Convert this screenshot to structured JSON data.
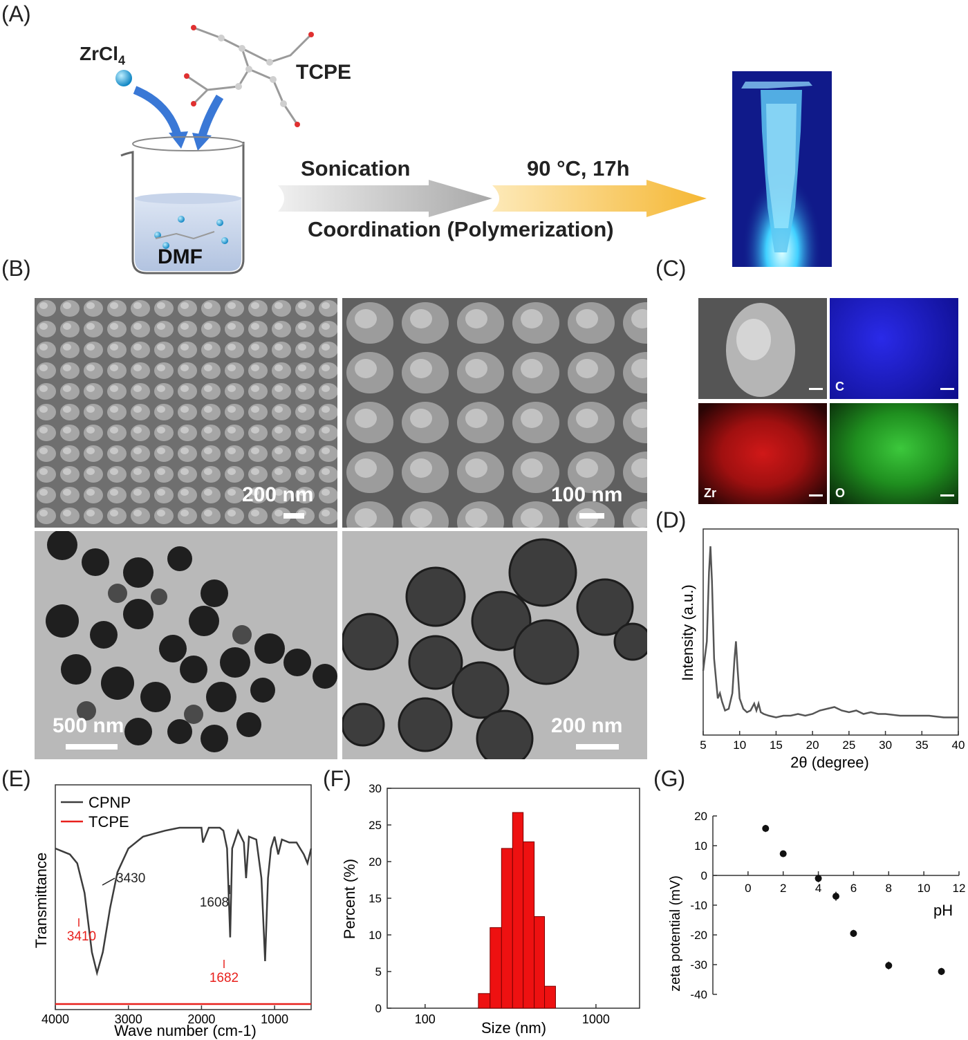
{
  "panel_labels": {
    "a": "(A)",
    "b": "(B)",
    "c": "(C)",
    "d": "(D)",
    "e": "(E)",
    "f": "(F)",
    "g": "(G)"
  },
  "scheme": {
    "zrcl4_main": "ZrCl",
    "zrcl4_sub": "4",
    "tcpe": "TCPE",
    "solvent": "DMF",
    "arrow1": "Sonication",
    "arrow2": "90 °C, 17h",
    "process": "Coordination (Polymerization)"
  },
  "micrographs": {
    "sem_low": "200 nm",
    "sem_high": "100 nm",
    "tem_low": "500 nm",
    "tem_high": "200 nm"
  },
  "mapping": {
    "c": "C",
    "zr": "Zr",
    "o": "O"
  },
  "colors": {
    "arrow_blue": "#3a78d6",
    "arrow_gray": "#b8b8b8",
    "arrow_yellow": "#f7c55a",
    "cpnp": "#3c3c3c",
    "tcpe": "#e8201c",
    "bar": "#ee1111",
    "map_c": "#1a1ad0",
    "map_zr": "#c01818",
    "map_o": "#2ab52a",
    "tube_glow": "#7fe0ff"
  },
  "chart_data": [
    {
      "panel": "D",
      "type": "line",
      "xlabel": "2θ (degree)",
      "ylabel": "Intensity (a.u.)",
      "xlim": [
        5,
        40
      ],
      "xticks": [
        "5",
        "10",
        "15",
        "20",
        "25",
        "30",
        "35",
        "40"
      ],
      "x": [
        5,
        5.5,
        5.8,
        6.0,
        6.2,
        6.5,
        7,
        7.3,
        7.6,
        8,
        8.5,
        9,
        9.3,
        9.5,
        9.7,
        10,
        10.5,
        11,
        11.5,
        12,
        12.3,
        12.6,
        12.9,
        13.3,
        14,
        15,
        16,
        17,
        18,
        19,
        20,
        21,
        22,
        23,
        24,
        25,
        26,
        27,
        28,
        29,
        30,
        32,
        34,
        36,
        38,
        40
      ],
      "values": [
        0.28,
        0.45,
        0.85,
        1.0,
        0.8,
        0.35,
        0.12,
        0.15,
        0.1,
        0.05,
        0.06,
        0.15,
        0.35,
        0.45,
        0.3,
        0.12,
        0.06,
        0.04,
        0.05,
        0.09,
        0.05,
        0.09,
        0.04,
        0.03,
        0.02,
        0.01,
        0.02,
        0.02,
        0.03,
        0.02,
        0.03,
        0.05,
        0.06,
        0.07,
        0.05,
        0.04,
        0.05,
        0.03,
        0.04,
        0.03,
        0.03,
        0.02,
        0.02,
        0.02,
        0.01,
        0.01
      ]
    },
    {
      "panel": "E",
      "type": "line",
      "xlabel": "Wave number (cm-1)",
      "ylabel": "Transmittance",
      "xlim": [
        4000,
        500
      ],
      "xticks": [
        "4000",
        "3000",
        "2000",
        "1000"
      ],
      "annotations": {
        "cpnp_peak1": "3430",
        "cpnp_peak2": "1608",
        "tcpe_peak1": "3410",
        "tcpe_peak2": "1682"
      },
      "series": [
        {
          "name": "CPNP",
          "x": [
            4000,
            3900,
            3800,
            3700,
            3600,
            3500,
            3430,
            3350,
            3250,
            3150,
            3000,
            2800,
            2500,
            2300,
            2100,
            2000,
            1980,
            1900,
            1750,
            1700,
            1650,
            1608,
            1580,
            1500,
            1420,
            1390,
            1350,
            1250,
            1180,
            1130,
            1090,
            1050,
            1000,
            950,
            900,
            800,
            700,
            650,
            600,
            550,
            500
          ],
          "values": [
            0.6,
            0.59,
            0.58,
            0.55,
            0.45,
            0.25,
            0.18,
            0.25,
            0.4,
            0.52,
            0.6,
            0.64,
            0.66,
            0.67,
            0.67,
            0.67,
            0.62,
            0.67,
            0.67,
            0.66,
            0.6,
            0.3,
            0.6,
            0.66,
            0.62,
            0.5,
            0.64,
            0.63,
            0.5,
            0.22,
            0.5,
            0.6,
            0.64,
            0.58,
            0.63,
            0.62,
            0.62,
            0.6,
            0.58,
            0.55,
            0.6
          ]
        },
        {
          "name": "TCPE",
          "x": [
            4000,
            3800,
            3600,
            3500,
            3410,
            3300,
            3100,
            3000,
            2800,
            2600,
            2400,
            2360,
            2300,
            2200,
            2000,
            1900,
            1800,
            1720,
            1682,
            1650,
            1600,
            1550,
            1500,
            1420,
            1400,
            1300,
            1250,
            1200,
            1100,
            1000,
            900,
            800,
            700,
            600,
            500
          ],
          "values": [
            0.18,
            0.17,
            0.16,
            0.14,
            0.13,
            0.14,
            0.16,
            0.16,
            0.15,
            0.15,
            0.14,
            0.1,
            0.14,
            0.14,
            0.14,
            0.13,
            0.12,
            0.05,
            0.0,
            0.05,
            0.08,
            0.06,
            0.09,
            0.07,
            0.1,
            0.08,
            0.1,
            0.09,
            0.1,
            0.11,
            0.12,
            0.12,
            0.11,
            0.1,
            0.11
          ]
        }
      ]
    },
    {
      "panel": "F",
      "type": "bar",
      "xlabel": "Size (nm)",
      "ylabel": "Percent (%)",
      "ylim": [
        0,
        30
      ],
      "xticks": [
        "100",
        "1000"
      ],
      "yticks": [
        "0",
        "5",
        "10",
        "15",
        "20",
        "25",
        "30"
      ],
      "bin_edges": [
        205,
        240,
        280,
        325,
        375,
        435,
        500,
        580
      ],
      "values": [
        2,
        11,
        21.8,
        26.7,
        22.7,
        12.5,
        3
      ]
    },
    {
      "panel": "G",
      "type": "scatter",
      "xlabel": "pH",
      "ylabel": "zeta potential (mV)",
      "xlim": [
        -2,
        12
      ],
      "ylim": [
        -40,
        20
      ],
      "xticks": [
        "0",
        "2",
        "4",
        "6",
        "8",
        "10",
        "12"
      ],
      "yticks": [
        "-40",
        "-30",
        "-20",
        "-10",
        "0",
        "10",
        "20"
      ],
      "x": [
        1,
        2,
        4,
        5,
        6,
        8,
        11
      ],
      "values": [
        15.8,
        7.3,
        -1.0,
        -7.0,
        -19.5,
        -30.3,
        -32.3
      ],
      "errors": [
        1.2,
        1.0,
        1.3,
        1.5,
        1.2,
        1.3,
        1.2
      ]
    }
  ]
}
